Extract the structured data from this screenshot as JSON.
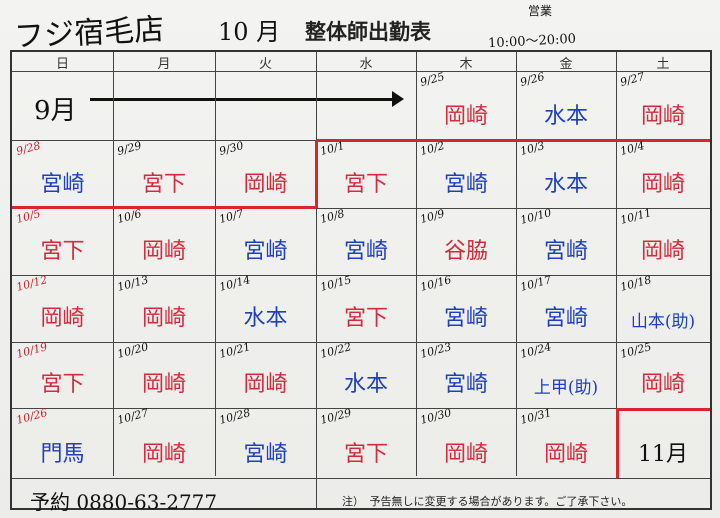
{
  "header": {
    "store": "フジ宿毛店",
    "month": "10 月",
    "title": "整体師出勤表",
    "open_label": "営業",
    "hours": "10:00～20:00"
  },
  "weekdays": [
    "日",
    "月",
    "火",
    "水",
    "木",
    "金",
    "土"
  ],
  "prev_month_label": "9月",
  "colors": {
    "red": "#d42a3c",
    "blue": "#1e3fc0",
    "line_red": "#d9262e"
  },
  "weeks": [
    [
      null,
      null,
      null,
      null,
      {
        "date": "9/25",
        "name": "岡崎",
        "color": "red"
      },
      {
        "date": "9/26",
        "name": "水本",
        "color": "blue"
      },
      {
        "date": "9/27",
        "name": "岡崎",
        "color": "red"
      }
    ],
    [
      {
        "date": "9/28",
        "name": "宮崎",
        "color": "blue",
        "date_red": true
      },
      {
        "date": "9/29",
        "name": "宮下",
        "color": "red"
      },
      {
        "date": "9/30",
        "name": "岡崎",
        "color": "red"
      },
      {
        "date": "10/1",
        "name": "宮下",
        "color": "red"
      },
      {
        "date": "10/2",
        "name": "宮崎",
        "color": "blue"
      },
      {
        "date": "10/3",
        "name": "水本",
        "color": "blue"
      },
      {
        "date": "10/4",
        "name": "岡崎",
        "color": "red"
      }
    ],
    [
      {
        "date": "10/5",
        "name": "宮下",
        "color": "red",
        "date_red": true
      },
      {
        "date": "10/6",
        "name": "岡崎",
        "color": "red"
      },
      {
        "date": "10/7",
        "name": "宮崎",
        "color": "blue"
      },
      {
        "date": "10/8",
        "name": "宮崎",
        "color": "blue"
      },
      {
        "date": "10/9",
        "name": "谷脇",
        "color": "red"
      },
      {
        "date": "10/10",
        "name": "宮崎",
        "color": "blue"
      },
      {
        "date": "10/11",
        "name": "岡崎",
        "color": "red"
      }
    ],
    [
      {
        "date": "10/12",
        "name": "岡崎",
        "color": "red",
        "date_red": true
      },
      {
        "date": "10/13",
        "name": "岡崎",
        "color": "red"
      },
      {
        "date": "10/14",
        "name": "水本",
        "color": "blue"
      },
      {
        "date": "10/15",
        "name": "宮下",
        "color": "red"
      },
      {
        "date": "10/16",
        "name": "宮崎",
        "color": "blue"
      },
      {
        "date": "10/17",
        "name": "宮崎",
        "color": "blue"
      },
      {
        "date": "10/18",
        "name": "山本(助)",
        "color": "blue"
      }
    ],
    [
      {
        "date": "10/19",
        "name": "宮下",
        "color": "red",
        "date_red": true
      },
      {
        "date": "10/20",
        "name": "岡崎",
        "color": "red"
      },
      {
        "date": "10/21",
        "name": "岡崎",
        "color": "red"
      },
      {
        "date": "10/22",
        "name": "水本",
        "color": "blue"
      },
      {
        "date": "10/23",
        "name": "宮崎",
        "color": "blue"
      },
      {
        "date": "10/24",
        "name": "上甲(助)",
        "color": "blue"
      },
      {
        "date": "10/25",
        "name": "岡崎",
        "color": "red"
      }
    ],
    [
      {
        "date": "10/26",
        "name": "門馬",
        "color": "blue",
        "date_red": true
      },
      {
        "date": "10/27",
        "name": "岡崎",
        "color": "red"
      },
      {
        "date": "10/28",
        "name": "宮崎",
        "color": "blue"
      },
      {
        "date": "10/29",
        "name": "宮下",
        "color": "red"
      },
      {
        "date": "10/30",
        "name": "岡崎",
        "color": "red"
      },
      {
        "date": "10/31",
        "name": "岡崎",
        "color": "red"
      },
      {
        "date": "",
        "name": "11月",
        "color": "black"
      }
    ]
  ],
  "footer": {
    "phone": "予約 0880-63-2777",
    "note": "注）　予告無しに変更する場合があります。ご了承下さい。"
  }
}
